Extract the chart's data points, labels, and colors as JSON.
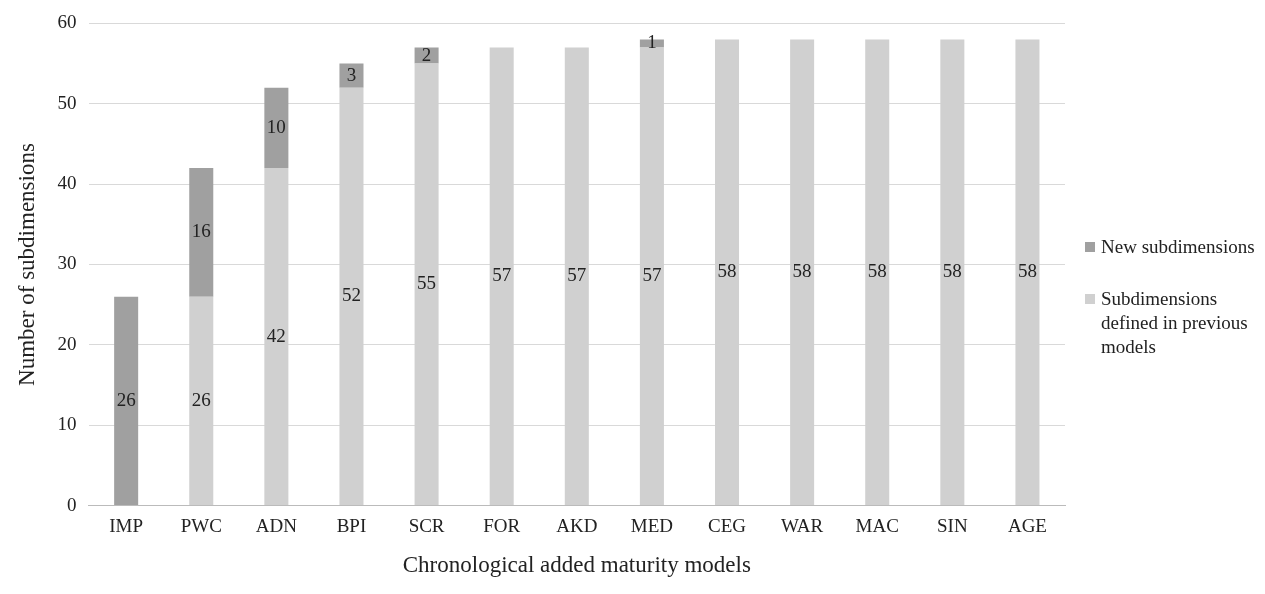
{
  "chart_data": {
    "type": "bar",
    "stacked": true,
    "xlabel": "Chronological added maturity models",
    "ylabel": "Number of subdimensions",
    "categories": [
      "IMP",
      "PWC",
      "ADN",
      "BPI",
      "SCR",
      "FOR",
      "AKD",
      "MED",
      "CEG",
      "WAR",
      "MAC",
      "SIN",
      "AGE"
    ],
    "series": [
      {
        "name": "Subdimensions defined in previous models",
        "color": "#d0d0d0",
        "values": [
          null,
          26,
          42,
          52,
          55,
          57,
          57,
          57,
          58,
          58,
          58,
          58,
          58
        ],
        "value_labels": [
          null,
          "26",
          "42",
          "52",
          "55",
          "57",
          "57",
          "57",
          "58",
          "58",
          "58",
          "58",
          "58"
        ]
      },
      {
        "name": "New subdimensions",
        "color": "#a0a0a0",
        "values": [
          26,
          16,
          10,
          3,
          2,
          null,
          null,
          1,
          null,
          null,
          null,
          null,
          null
        ],
        "value_labels": [
          "26",
          "16",
          "10",
          "3",
          "2",
          null,
          null,
          "1",
          null,
          null,
          null,
          null,
          null
        ]
      }
    ],
    "ylim": [
      0,
      60
    ],
    "yticks": [
      0,
      10,
      20,
      30,
      40,
      50,
      60
    ],
    "grid": "y",
    "legend": "right"
  }
}
